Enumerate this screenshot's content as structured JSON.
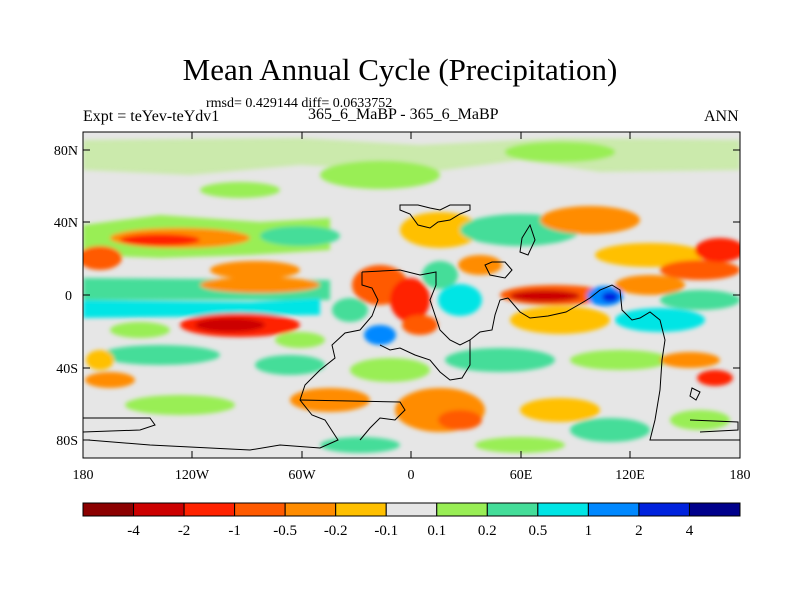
{
  "title": "Mean Annual Cycle (Precipitation)",
  "stats": "rmsd= 0.429144 diff= 0.0633752",
  "left_label": "Expt = teYev-teYdv1",
  "center_label": "365_6_MaBP - 365_6_MaBP",
  "season": "ANN",
  "axes": {
    "lat_labels": [
      "80N",
      "40N",
      "0",
      "40S",
      "80S"
    ],
    "lon_labels": [
      "180",
      "120W",
      "60W",
      "0",
      "60E",
      "120E",
      "180"
    ]
  },
  "colorbar": {
    "labels": [
      "-4",
      "-2",
      "-1",
      "-0.5",
      "-0.2",
      "-0.1",
      "0.1",
      "0.2",
      "0.5",
      "1",
      "2",
      "4"
    ],
    "colors": [
      "#8b0000",
      "#cc0000",
      "#ff2200",
      "#ff5a00",
      "#ff8c00",
      "#ffc000",
      "#e6e6e6",
      "#99ee55",
      "#44dd99",
      "#00e5e5",
      "#0088ff",
      "#0022dd",
      "#00008b"
    ]
  },
  "colors": {
    "background": "#e6e6e6",
    "coastline": "#000000"
  }
}
